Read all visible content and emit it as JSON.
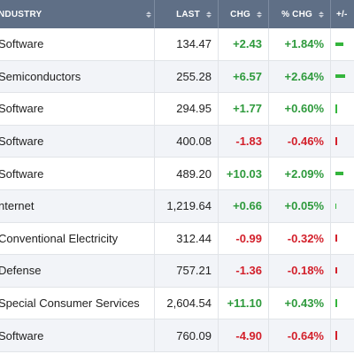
{
  "header": {
    "industry": "NDUSTRY",
    "last": "LAST",
    "chg": "CHG",
    "pct_chg": "% CHG",
    "plus_minus": "+/-"
  },
  "colors": {
    "positive": "#2e9a3c",
    "negative": "#d3202b",
    "header_bg": "#5f6f86"
  },
  "rows": [
    {
      "industry": "Software",
      "last": "134.47",
      "chg": "+2.43",
      "pct": "+1.84%",
      "dir": "pos",
      "magnitude": 1.84
    },
    {
      "industry": "Semiconductors",
      "last": "255.28",
      "chg": "+6.57",
      "pct": "+2.64%",
      "dir": "pos",
      "magnitude": 2.64
    },
    {
      "industry": "Software",
      "last": "294.95",
      "chg": "+1.77",
      "pct": "+0.60%",
      "dir": "pos",
      "magnitude": 0.6
    },
    {
      "industry": "Software",
      "last": "400.08",
      "chg": "-1.83",
      "pct": "-0.46%",
      "dir": "neg",
      "magnitude": 0.46
    },
    {
      "industry": "Software",
      "last": "489.20",
      "chg": "+10.03",
      "pct": "+2.09%",
      "dir": "pos",
      "magnitude": 2.09
    },
    {
      "industry": "nternet",
      "last": "1,219.64",
      "chg": "+0.66",
      "pct": "+0.05%",
      "dir": "pos",
      "magnitude": 0.05
    },
    {
      "industry": "Conventional Electricity",
      "last": "312.44",
      "chg": "-0.99",
      "pct": "-0.32%",
      "dir": "neg",
      "magnitude": 0.32
    },
    {
      "industry": "Defense",
      "last": "757.21",
      "chg": "-1.36",
      "pct": "-0.18%",
      "dir": "neg",
      "magnitude": 0.18
    },
    {
      "industry": "Special Consumer Services",
      "last": "2,604.54",
      "chg": "+11.10",
      "pct": "+0.43%",
      "dir": "pos",
      "magnitude": 0.43
    },
    {
      "industry": "Software",
      "last": "760.09",
      "chg": "-4.90",
      "pct": "-0.64%",
      "dir": "neg",
      "magnitude": 0.64
    }
  ]
}
